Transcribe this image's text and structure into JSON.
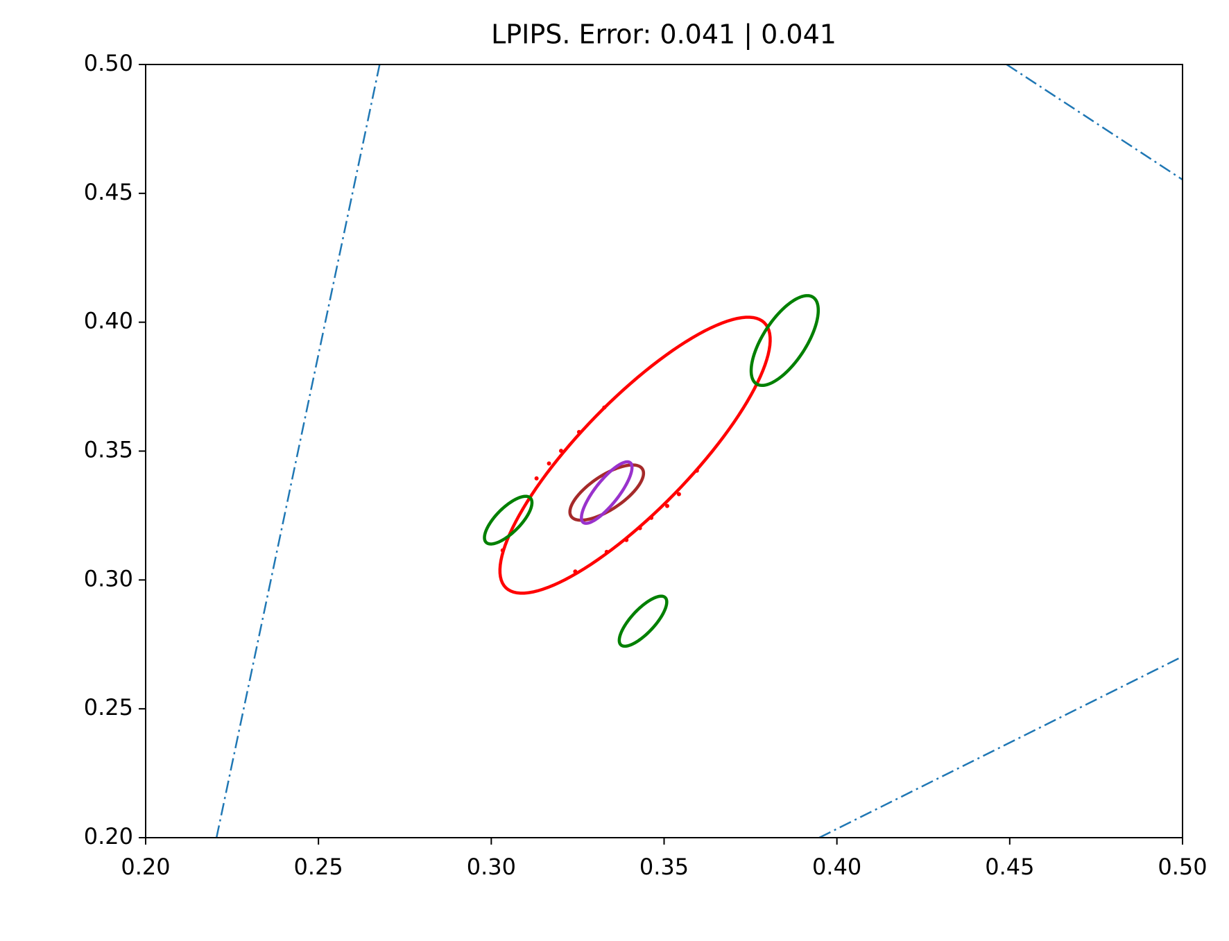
{
  "chart_data": {
    "type": "ellipse-plot",
    "title": "LPIPS. Error: 0.041 | 0.041",
    "xlim": [
      0.2,
      0.5
    ],
    "ylim": [
      0.2,
      0.5
    ],
    "xticks": [
      {
        "value": 0.2,
        "label": "0.20"
      },
      {
        "value": 0.25,
        "label": "0.25"
      },
      {
        "value": 0.3,
        "label": "0.30"
      },
      {
        "value": 0.35,
        "label": "0.35"
      },
      {
        "value": 0.4,
        "label": "0.40"
      },
      {
        "value": 0.45,
        "label": "0.45"
      },
      {
        "value": 0.5,
        "label": "0.50"
      }
    ],
    "yticks": [
      {
        "value": 0.2,
        "label": "0.20"
      },
      {
        "value": 0.25,
        "label": "0.25"
      },
      {
        "value": 0.3,
        "label": "0.30"
      },
      {
        "value": 0.35,
        "label": "0.35"
      },
      {
        "value": 0.4,
        "label": "0.40"
      },
      {
        "value": 0.45,
        "label": "0.45"
      },
      {
        "value": 0.5,
        "label": "0.50"
      }
    ],
    "lines": [
      {
        "color": "#1f77b4",
        "x": [
          0.2205,
          0.2677
        ],
        "y": [
          0.2,
          0.5
        ]
      },
      {
        "color": "#1f77b4",
        "x": [
          0.4491,
          0.5
        ],
        "y": [
          0.5,
          0.4553
        ]
      },
      {
        "color": "#1f77b4",
        "x": [
          0.3949,
          0.5
        ],
        "y": [
          0.2,
          0.2703
        ]
      }
    ],
    "ellipses": [
      {
        "color": "#ff0000",
        "cx": 0.3416,
        "cy": 0.3484,
        "ax": 0.0374,
        "ay": 0.0514,
        "bx": 0.0114,
        "by": -0.015
      },
      {
        "color": "#008000",
        "cx": 0.3849,
        "cy": 0.3929,
        "ax": 0.0082,
        "ay": 0.0168,
        "bx": 0.0052,
        "by": -0.0046
      },
      {
        "color": "#008000",
        "cx": 0.3049,
        "cy": 0.3232,
        "ax": 0.0064,
        "ay": 0.0086,
        "bx": 0.0025,
        "by": -0.0034
      },
      {
        "color": "#008000",
        "cx": 0.3439,
        "cy": 0.284,
        "ax": 0.0064,
        "ay": 0.0092,
        "bx": 0.0025,
        "by": -0.0031
      },
      {
        "color": "#a52a2a",
        "cx": 0.3334,
        "cy": 0.3339,
        "ax": 0.0103,
        "ay": 0.0092,
        "bx": 0.0027,
        "by": -0.0055
      },
      {
        "color": "#9932cc",
        "cx": 0.3334,
        "cy": 0.3339,
        "ax": 0.0068,
        "ay": 0.0116,
        "bx": 0.0027,
        "by": -0.0028
      }
    ],
    "points": {
      "color": "#ff0000",
      "x": [
        0.3327,
        0.3254,
        0.3202,
        0.3167,
        0.3131,
        0.3033,
        0.3243,
        0.3334,
        0.3391,
        0.343,
        0.3463,
        0.3509,
        0.3543,
        0.3595
      ],
      "y": [
        0.3669,
        0.3574,
        0.3501,
        0.3452,
        0.3394,
        0.3115,
        0.3033,
        0.3109,
        0.3155,
        0.3201,
        0.3241,
        0.3287,
        0.3333,
        0.3424
      ]
    }
  }
}
